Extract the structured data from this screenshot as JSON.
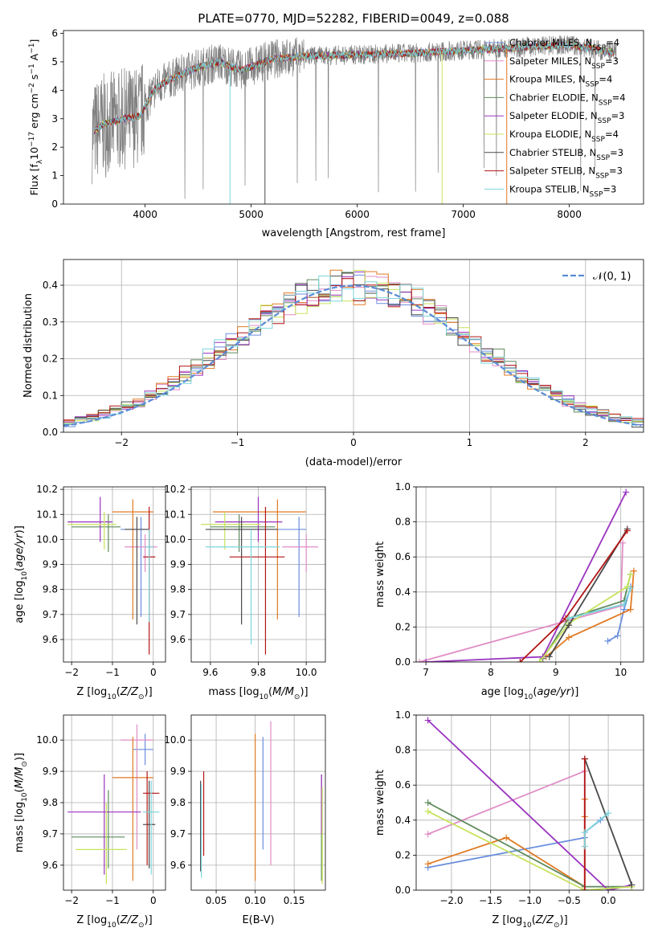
{
  "figure": {
    "title": "PLATE=0770, MJD=52282, FIBERID=0049, z=0.088"
  },
  "colors": {
    "Chabrier MILES": "#6a8fde",
    "Salpeter MILES": "#e18cc5",
    "Kroupa MILES": "#e07a24",
    "Chabrier ELODIE": "#5f8a5c",
    "Salpeter ELODIE": "#9a33bf",
    "Kroupa ELODIE": "#c6e35b",
    "Chabrier STELIB": "#4a4a4a",
    "Salpeter STELIB": "#b31515",
    "Kroupa STELIB": "#7cd6dc",
    "data": "#808080"
  },
  "chart_data": [
    {
      "type": "line",
      "id": "spectrum",
      "title": "PLATE=0770, MJD=52282, FIBERID=0049, z=0.088",
      "xlabel": "wavelength [Angstrom, rest frame]",
      "ylabel": "Flux [f_λ 10^-17 erg cm^-2 s^-1 A^-1]",
      "xlim": [
        3230,
        8700
      ],
      "ylim": [
        0,
        6.1
      ],
      "xticks": [
        4000,
        5000,
        6000,
        7000,
        8000
      ],
      "yticks": [
        0,
        1,
        2,
        3,
        4,
        5,
        6
      ],
      "legend_position": "right",
      "legend": [
        {
          "label": "Chabrier MILES, N",
          "sub": "SSP",
          "suffix": "=4",
          "color": "#6a8fde"
        },
        {
          "label": "Salpeter MILES, N",
          "sub": "SSP",
          "suffix": "=3",
          "color": "#e18cc5"
        },
        {
          "label": "Kroupa MILES, N",
          "sub": "SSP",
          "suffix": "=4",
          "color": "#e07a24"
        },
        {
          "label": "Chabrier ELODIE, N",
          "sub": "SSP",
          "suffix": "=4",
          "color": "#5f8a5c"
        },
        {
          "label": "Salpeter ELODIE, N",
          "sub": "SSP",
          "suffix": "=3",
          "color": "#9a33bf"
        },
        {
          "label": "Kroupa ELODIE, N",
          "sub": "SSP",
          "suffix": "=4",
          "color": "#c6e35b"
        },
        {
          "label": "Chabrier STELIB, N",
          "sub": "SSP",
          "suffix": "=3",
          "color": "#4a4a4a"
        },
        {
          "label": "Salpeter STELIB, N",
          "sub": "SSP",
          "suffix": "=3",
          "color": "#b31515"
        },
        {
          "label": "Kroupa STELIB, N",
          "sub": "SSP",
          "suffix": "=3",
          "color": "#7cd6dc"
        }
      ],
      "continuum_knots": {
        "x": [
          3500,
          3600,
          3800,
          3950,
          4100,
          4300,
          4500,
          4700,
          4900,
          5200,
          5500,
          6000,
          6500,
          7000,
          7500,
          8000,
          8450
        ],
        "y": [
          2.5,
          2.8,
          3.0,
          3.1,
          4.1,
          4.5,
          4.8,
          5.0,
          4.7,
          5.1,
          5.2,
          5.25,
          5.3,
          5.4,
          5.5,
          5.6,
          5.3
        ]
      },
      "spikes": [
        {
          "x": 4800,
          "y": 0.0
        },
        {
          "x": 5130,
          "y": 0.0
        },
        {
          "x": 6800,
          "y": 0.0
        },
        {
          "x": 7410,
          "y": 0.0
        }
      ]
    },
    {
      "type": "bar",
      "id": "residuals",
      "xlabel": "(data-model)/error",
      "ylabel": "Normed distribution",
      "xlim": [
        -2.5,
        2.5
      ],
      "ylim": [
        0,
        0.47
      ],
      "xticks": [
        -2,
        -1,
        0,
        1,
        2
      ],
      "yticks": [
        0.0,
        0.1,
        0.2,
        0.3,
        0.4
      ],
      "grid": true,
      "legend": {
        "label": "𝒩(0, 1)",
        "position": "top-right"
      },
      "bin_width": 0.1,
      "bin_start": -2.5
    },
    {
      "type": "scatter",
      "id": "age-vs-Z",
      "xlabel": "Z [log10(Z/Z⊙)]",
      "ylabel": "age  [log10(age/yr)]",
      "xlim": [
        -2.2,
        0.3
      ],
      "ylim": [
        9.51,
        10.21
      ],
      "xticks": [
        -2,
        -1,
        0
      ],
      "yticks": [
        9.6,
        9.7,
        9.8,
        9.9,
        10.0,
        10.1,
        10.2
      ],
      "grid": true,
      "points": [
        {
          "model": "Chabrier MILES",
          "x": -0.3,
          "y": 10.04,
          "xerr": [
            0.5,
            0.2
          ],
          "yerr": [
            0.35,
            0.05
          ]
        },
        {
          "model": "Salpeter MILES",
          "x": -0.2,
          "y": 9.97,
          "xerr": [
            0.5,
            0.3
          ],
          "yerr": [
            0.1,
            0.05
          ]
        },
        {
          "model": "Kroupa MILES",
          "x": -0.5,
          "y": 10.11,
          "xerr": [
            0.5,
            0.5
          ],
          "yerr": [
            0.43,
            0.05
          ]
        },
        {
          "model": "Chabrier ELODIE",
          "x": -1.1,
          "y": 10.05,
          "xerr": [
            0.9,
            0.3
          ],
          "yerr": [
            0.1,
            0.05
          ]
        },
        {
          "model": "Salpeter ELODIE",
          "x": -1.3,
          "y": 10.07,
          "xerr": [
            0.8,
            0.3
          ],
          "yerr": [
            0.08,
            0.1
          ]
        },
        {
          "model": "Kroupa ELODIE",
          "x": -1.2,
          "y": 10.06,
          "xerr": [
            0.9,
            0.3
          ],
          "yerr": [
            0.1,
            0.05
          ]
        },
        {
          "model": "Chabrier STELIB",
          "x": -0.4,
          "y": 10.04,
          "xerr": [
            0.3,
            0.3
          ],
          "yerr": [
            0.38,
            0.05
          ]
        },
        {
          "model": "Salpeter STELIB",
          "x": -0.1,
          "y": 9.93,
          "xerr": [
            0.15,
            0.15
          ],
          "yerr": [
            0.39,
            0.2
          ]
        },
        {
          "model": "Kroupa STELIB",
          "x": -0.1,
          "y": 9.97,
          "xerr": [
            0.1,
            0.1
          ],
          "yerr": [
            0.3,
            0.07
          ]
        }
      ]
    },
    {
      "type": "scatter",
      "id": "age-vs-mass",
      "xlabel": "mass [log10(M/M⊙)]",
      "ylabel": "",
      "xlim": [
        9.52,
        10.08
      ],
      "ylim": [
        9.51,
        10.21
      ],
      "xticks": [
        9.6,
        9.8,
        10.0
      ],
      "yticks": [
        9.6,
        9.7,
        9.8,
        9.9,
        10.0,
        10.1,
        10.2
      ],
      "grid": true,
      "points": [
        {
          "model": "Chabrier MILES",
          "x": 9.97,
          "y": 10.04,
          "xerr": [
            0.27,
            0.03
          ],
          "yerr": [
            0.35,
            0.05
          ]
        },
        {
          "model": "Salpeter MILES",
          "x": 10.0,
          "y": 9.97,
          "xerr": [
            0.1,
            0.05
          ],
          "yerr": [
            0.1,
            0.05
          ]
        },
        {
          "model": "Kroupa MILES",
          "x": 9.88,
          "y": 10.11,
          "xerr": [
            0.27,
            0.12
          ],
          "yerr": [
            0.43,
            0.05
          ]
        },
        {
          "model": "Chabrier ELODIE",
          "x": 9.72,
          "y": 10.05,
          "xerr": [
            0.12,
            0.15
          ],
          "yerr": [
            0.1,
            0.05
          ]
        },
        {
          "model": "Salpeter ELODIE",
          "x": 9.8,
          "y": 10.07,
          "xerr": [
            0.18,
            0.1
          ],
          "yerr": [
            0.08,
            0.1
          ]
        },
        {
          "model": "Kroupa ELODIE",
          "x": 9.66,
          "y": 10.06,
          "xerr": [
            0.1,
            0.15
          ],
          "yerr": [
            0.1,
            0.05
          ]
        },
        {
          "model": "Chabrier STELIB",
          "x": 9.73,
          "y": 10.04,
          "xerr": [
            0.15,
            0.15
          ],
          "yerr": [
            0.38,
            0.05
          ]
        },
        {
          "model": "Salpeter STELIB",
          "x": 9.83,
          "y": 9.93,
          "xerr": [
            0.15,
            0.08
          ],
          "yerr": [
            0.39,
            0.2
          ]
        },
        {
          "model": "Kroupa STELIB",
          "x": 9.77,
          "y": 9.97,
          "xerr": [
            0.19,
            0.12
          ],
          "yerr": [
            0.39,
            0.07
          ]
        }
      ]
    },
    {
      "type": "line",
      "id": "mass-weight-vs-age",
      "xlabel": "age  [log10(age/yr)]",
      "ylabel": "mass weight",
      "xlim": [
        6.85,
        10.35
      ],
      "ylim": [
        0,
        1.0
      ],
      "xticks": [
        7,
        8,
        9,
        10
      ],
      "yticks": [
        0.0,
        0.2,
        0.4,
        0.6,
        0.8,
        1.0
      ],
      "grid": true,
      "series": [
        {
          "model": "Chabrier MILES",
          "x": [
            9.8,
            9.95,
            10.05,
            10.15
          ],
          "y": [
            0.12,
            0.15,
            0.3,
            0.43
          ]
        },
        {
          "model": "Salpeter MILES",
          "x": [
            6.9,
            10.0,
            10.03
          ],
          "y": [
            0.0,
            0.32,
            0.68
          ]
        },
        {
          "model": "Kroupa MILES",
          "x": [
            8.85,
            9.2,
            10.15,
            10.2
          ],
          "y": [
            0.03,
            0.14,
            0.3,
            0.52
          ]
        },
        {
          "model": "Chabrier ELODIE",
          "x": [
            8.8,
            9.2,
            10.05,
            10.15
          ],
          "y": [
            0.02,
            0.25,
            0.35,
            0.5
          ]
        },
        {
          "model": "Salpeter ELODIE",
          "x": [
            7.0,
            8.8,
            10.08
          ],
          "y": [
            0.0,
            0.03,
            0.97
          ]
        },
        {
          "model": "Kroupa ELODIE",
          "x": [
            8.75,
            9.2,
            10.1,
            10.15
          ],
          "y": [
            0.0,
            0.22,
            0.43,
            0.5
          ]
        },
        {
          "model": "Chabrier STELIB",
          "x": [
            8.9,
            9.2,
            10.1
          ],
          "y": [
            0.03,
            0.21,
            0.76
          ]
        },
        {
          "model": "Salpeter STELIB",
          "x": [
            8.45,
            9.15,
            10.1
          ],
          "y": [
            0.0,
            0.25,
            0.75
          ]
        },
        {
          "model": "Kroupa STELIB",
          "x": [
            9.2,
            10.05,
            10.15
          ],
          "y": [
            0.25,
            0.33,
            0.42
          ]
        }
      ]
    },
    {
      "type": "scatter",
      "id": "mass-vs-Z",
      "xlabel": "Z [log10(Z/Z⊙)]",
      "ylabel": "mass [log10(M/M⊙)]",
      "xlim": [
        -2.2,
        0.3
      ],
      "ylim": [
        9.52,
        10.08
      ],
      "xticks": [
        -2,
        -1,
        0
      ],
      "yticks": [
        9.6,
        9.7,
        9.8,
        9.9,
        10.0
      ],
      "grid": true,
      "points": [
        {
          "model": "Chabrier MILES",
          "x": -0.2,
          "y": 9.97,
          "xerr": [
            0.3,
            0.2
          ],
          "yerr": [
            0.05,
            0.05
          ]
        },
        {
          "model": "Salpeter MILES",
          "x": -0.4,
          "y": 10.0,
          "xerr": [
            0.4,
            0.4
          ],
          "yerr": [
            0.35,
            0.05
          ]
        },
        {
          "model": "Kroupa MILES",
          "x": -0.5,
          "y": 9.88,
          "xerr": [
            0.5,
            0.5
          ],
          "yerr": [
            0.33,
            0.13
          ]
        },
        {
          "model": "Chabrier ELODIE",
          "x": -1.1,
          "y": 9.69,
          "xerr": [
            0.9,
            0.4
          ],
          "yerr": [
            0.1,
            0.15
          ]
        },
        {
          "model": "Salpeter ELODIE",
          "x": -1.2,
          "y": 9.77,
          "xerr": [
            0.9,
            0.9
          ],
          "yerr": [
            0.2,
            0.12
          ]
        },
        {
          "model": "Kroupa ELODIE",
          "x": -1.15,
          "y": 9.65,
          "xerr": [
            0.75,
            0.5
          ],
          "yerr": [
            0.11,
            0.15
          ]
        },
        {
          "model": "Chabrier STELIB",
          "x": -0.1,
          "y": 9.73,
          "xerr": [
            0.15,
            0.15
          ],
          "yerr": [
            0.14,
            0.14
          ]
        },
        {
          "model": "Salpeter STELIB",
          "x": -0.15,
          "y": 9.83,
          "xerr": [
            0.1,
            0.3
          ],
          "yerr": [
            0.23,
            0.07
          ]
        },
        {
          "model": "Kroupa STELIB",
          "x": -0.05,
          "y": 9.77,
          "xerr": [
            0.2,
            0.2
          ],
          "yerr": [
            0.2,
            0.1
          ]
        }
      ]
    },
    {
      "type": "scatter",
      "id": "mass-vs-ebv",
      "xlabel": "E(B-V)",
      "ylabel": "",
      "xlim": [
        0.018,
        0.19
      ],
      "ylim": [
        9.52,
        10.08
      ],
      "xticks": [
        0.05,
        0.1,
        0.15
      ],
      "yticks": [
        9.6,
        9.7,
        9.8,
        9.9,
        10.0
      ],
      "grid": true,
      "points": [
        {
          "model": "Chabrier MILES",
          "x": 0.11,
          "y": 9.97,
          "yerr": [
            0.32,
            0.04
          ]
        },
        {
          "model": "Salpeter MILES",
          "x": 0.12,
          "y": 9.9,
          "yerr": [
            0.3,
            0.16
          ]
        },
        {
          "model": "Kroupa MILES",
          "x": 0.1,
          "y": 9.88,
          "yerr": [
            0.33,
            0.14
          ]
        },
        {
          "model": "Chabrier ELODIE",
          "x": 0.185,
          "y": 9.7,
          "yerr": [
            0.15,
            0.19
          ]
        },
        {
          "model": "Salpeter ELODIE",
          "x": 0.185,
          "y": 9.8,
          "yerr": [
            0.1,
            0.09
          ]
        },
        {
          "model": "Kroupa ELODIE",
          "x": 0.186,
          "y": 9.65,
          "yerr": [
            0.11,
            0.2
          ]
        },
        {
          "model": "Chabrier STELIB",
          "x": 0.03,
          "y": 9.73,
          "yerr": [
            0.15,
            0.14
          ]
        },
        {
          "model": "Salpeter STELIB",
          "x": 0.034,
          "y": 9.77,
          "yerr": [
            0.14,
            0.13
          ]
        },
        {
          "model": "Kroupa STELIB",
          "x": 0.031,
          "y": 9.7,
          "yerr": [
            0.14,
            0.16
          ]
        }
      ]
    },
    {
      "type": "line",
      "id": "mass-weight-vs-Z",
      "xlabel": "Z [log10(Z/Z⊙)]",
      "ylabel": "mass weight",
      "xlim": [
        -2.45,
        0.45
      ],
      "ylim": [
        0,
        1.0
      ],
      "xticks": [
        -2.0,
        -1.5,
        -1.0,
        -0.5,
        0.0
      ],
      "grid": true,
      "series": [
        {
          "model": "Chabrier MILES",
          "x": [
            -2.3,
            -0.3,
            -0.3,
            -0.1,
            0.0
          ],
          "y": [
            0.13,
            0.3,
            0.33,
            0.4,
            0.44
          ]
        },
        {
          "model": "Salpeter MILES",
          "x": [
            -2.3,
            -0.3,
            -0.3
          ],
          "y": [
            0.32,
            0.68,
            0.0
          ]
        },
        {
          "model": "Kroupa MILES",
          "x": [
            -2.3,
            -1.3,
            -0.3,
            -0.3,
            -0.3
          ],
          "y": [
            0.15,
            0.3,
            0.02,
            0.42,
            0.52
          ]
        },
        {
          "model": "Chabrier ELODIE",
          "x": [
            -2.3,
            -0.3,
            0.3
          ],
          "y": [
            0.5,
            0.02,
            0.02
          ]
        },
        {
          "model": "Salpeter ELODIE",
          "x": [
            -2.3,
            0.0,
            0.3
          ],
          "y": [
            0.97,
            0.0,
            0.03
          ]
        },
        {
          "model": "Kroupa ELODIE",
          "x": [
            -2.3,
            -0.3,
            0.3
          ],
          "y": [
            0.45,
            0.0,
            0.02
          ]
        },
        {
          "model": "Chabrier STELIB",
          "x": [
            -0.3,
            0.3
          ],
          "y": [
            0.75,
            0.03
          ]
        },
        {
          "model": "Salpeter STELIB",
          "x": [
            -0.3,
            -0.3
          ],
          "y": [
            0.75,
            0.0
          ]
        },
        {
          "model": "Kroupa STELIB",
          "x": [
            -0.3,
            -0.3,
            0.0
          ],
          "y": [
            0.25,
            0.33,
            0.44
          ]
        }
      ]
    }
  ]
}
